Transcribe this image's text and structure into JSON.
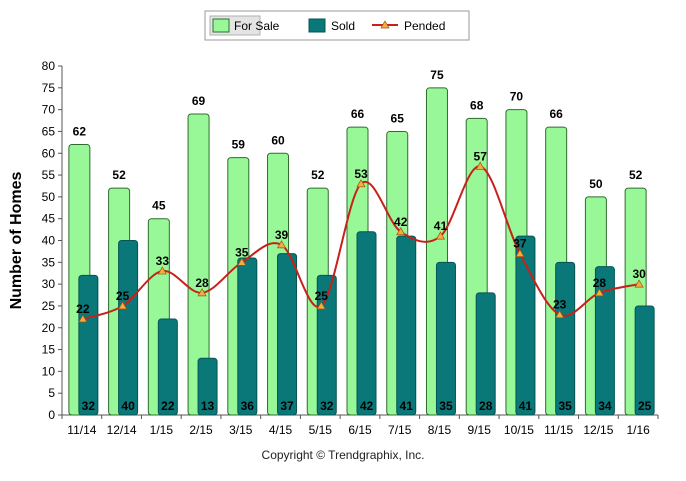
{
  "chart_data": {
    "type": "bar",
    "title": "",
    "xlabel": "",
    "ylabel": "Number of Homes",
    "ylim": [
      0,
      80
    ],
    "ytick_step": 5,
    "grid": false,
    "legend_position": "top-center",
    "categories": [
      "11/14",
      "12/14",
      "1/15",
      "2/15",
      "3/15",
      "4/15",
      "5/15",
      "6/15",
      "7/15",
      "8/15",
      "9/15",
      "10/15",
      "11/15",
      "12/15",
      "1/16"
    ],
    "series": [
      {
        "name": "For Sale",
        "type": "bar",
        "color": "#98f898",
        "stroke": "#2f6b2f",
        "values": [
          62,
          52,
          45,
          69,
          59,
          60,
          52,
          66,
          65,
          75,
          68,
          70,
          66,
          50,
          52
        ]
      },
      {
        "name": "Sold",
        "type": "bar",
        "color": "#0a7878",
        "stroke": "#065454",
        "values": [
          32,
          40,
          22,
          13,
          36,
          37,
          32,
          42,
          41,
          35,
          28,
          41,
          35,
          34,
          25
        ]
      },
      {
        "name": "Pended",
        "type": "line",
        "color": "#c8201a",
        "marker_color": "#f0b040",
        "values": [
          22,
          25,
          33,
          28,
          35,
          39,
          25,
          53,
          42,
          41,
          57,
          37,
          23,
          28,
          30
        ]
      }
    ]
  },
  "copyright": "Copyright © Trendgraphix, Inc."
}
